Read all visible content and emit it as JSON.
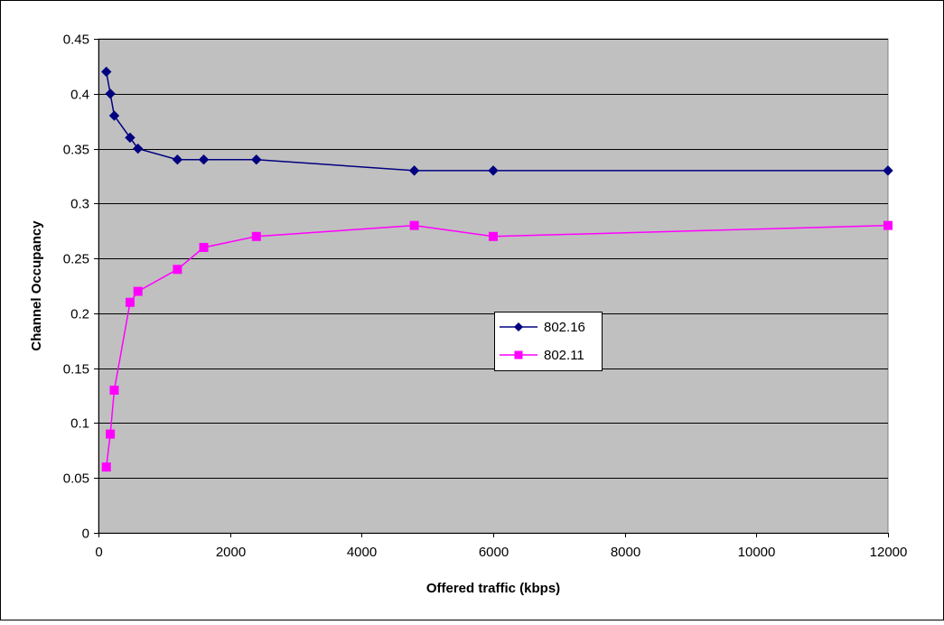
{
  "chart_data": {
    "type": "line",
    "title": "",
    "xlabel": "Offered traffic (kbps)",
    "ylabel": "Channel Occupancy",
    "xlim": [
      0,
      12000
    ],
    "ylim": [
      0,
      0.45
    ],
    "x_ticks": [
      0,
      2000,
      4000,
      6000,
      8000,
      10000,
      12000
    ],
    "y_ticks": [
      0,
      0.05,
      0.1,
      0.15,
      0.2,
      0.25,
      0.3,
      0.35,
      0.4,
      0.45
    ],
    "x_tick_labels": [
      "0",
      "2000",
      "4000",
      "6000",
      "8000",
      "10000",
      "12000"
    ],
    "y_tick_labels": [
      "0",
      "0.05",
      "0.1",
      "0.15",
      "0.2",
      "0.25",
      "0.3",
      "0.35",
      "0.4",
      "0.45"
    ],
    "grid": "horizontal",
    "plot_background": "#c0c0c0",
    "legend_position": "center-right",
    "series": [
      {
        "name": "802.16",
        "color": "#000080",
        "marker": "diamond",
        "x": [
          120,
          180,
          240,
          480,
          600,
          1200,
          1600,
          2400,
          4800,
          6000,
          12000
        ],
        "values": [
          0.42,
          0.4,
          0.38,
          0.36,
          0.35,
          0.34,
          0.34,
          0.34,
          0.33,
          0.33,
          0.33
        ]
      },
      {
        "name": "802.11",
        "color": "#ff00ff",
        "marker": "square",
        "x": [
          120,
          180,
          240,
          480,
          600,
          1200,
          1600,
          2400,
          4800,
          6000,
          12000
        ],
        "values": [
          0.06,
          0.09,
          0.13,
          0.21,
          0.22,
          0.24,
          0.26,
          0.27,
          0.28,
          0.27,
          0.28
        ]
      }
    ]
  }
}
